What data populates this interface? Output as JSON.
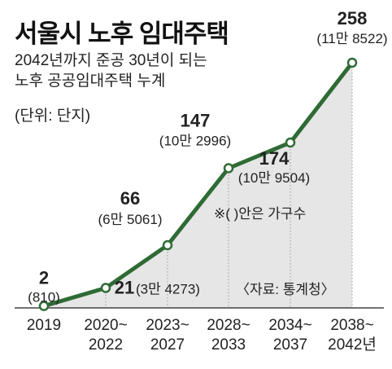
{
  "header": {
    "title": "서울시 노후 임대주택",
    "subtitle_line1": "2042년까지 준공 30년이 되는",
    "subtitle_line2": "노후 공공임대주택 누계",
    "unit": "(단위: 단지)"
  },
  "notes": {
    "paren_note": "※(  )안은 가구수",
    "source": "〈자료: 통계청〉"
  },
  "chart_data": {
    "type": "area",
    "title": "서울시 노후 임대주택",
    "categories": [
      "2019",
      "2020~2022",
      "2023~2027",
      "2028~2033",
      "2034~2037",
      "2038~2042년"
    ],
    "category_lines": [
      [
        "2019"
      ],
      [
        "2020~",
        "2022"
      ],
      [
        "2023~",
        "2027"
      ],
      [
        "2028~",
        "2033"
      ],
      [
        "2034~",
        "2037"
      ],
      [
        "2038~",
        "2042년"
      ]
    ],
    "values": [
      2,
      21,
      66,
      147,
      174,
      258
    ],
    "value_labels": [
      "2",
      "21",
      "66",
      "147",
      "174",
      "258"
    ],
    "households": [
      "(810)",
      "(3만 4273)",
      "(6만 5061)",
      "(10만 2996)",
      "(10만 9504)",
      "(11만 8522)"
    ],
    "ylabel": "단지",
    "ylim": [
      0,
      258
    ],
    "colors": {
      "line": "#2f6b35",
      "fill": "#e6e6e6",
      "marker_fill": "#ffffff",
      "axis": "#444444",
      "guide": "#9a9a9a"
    },
    "grid": false,
    "legend": "none"
  }
}
